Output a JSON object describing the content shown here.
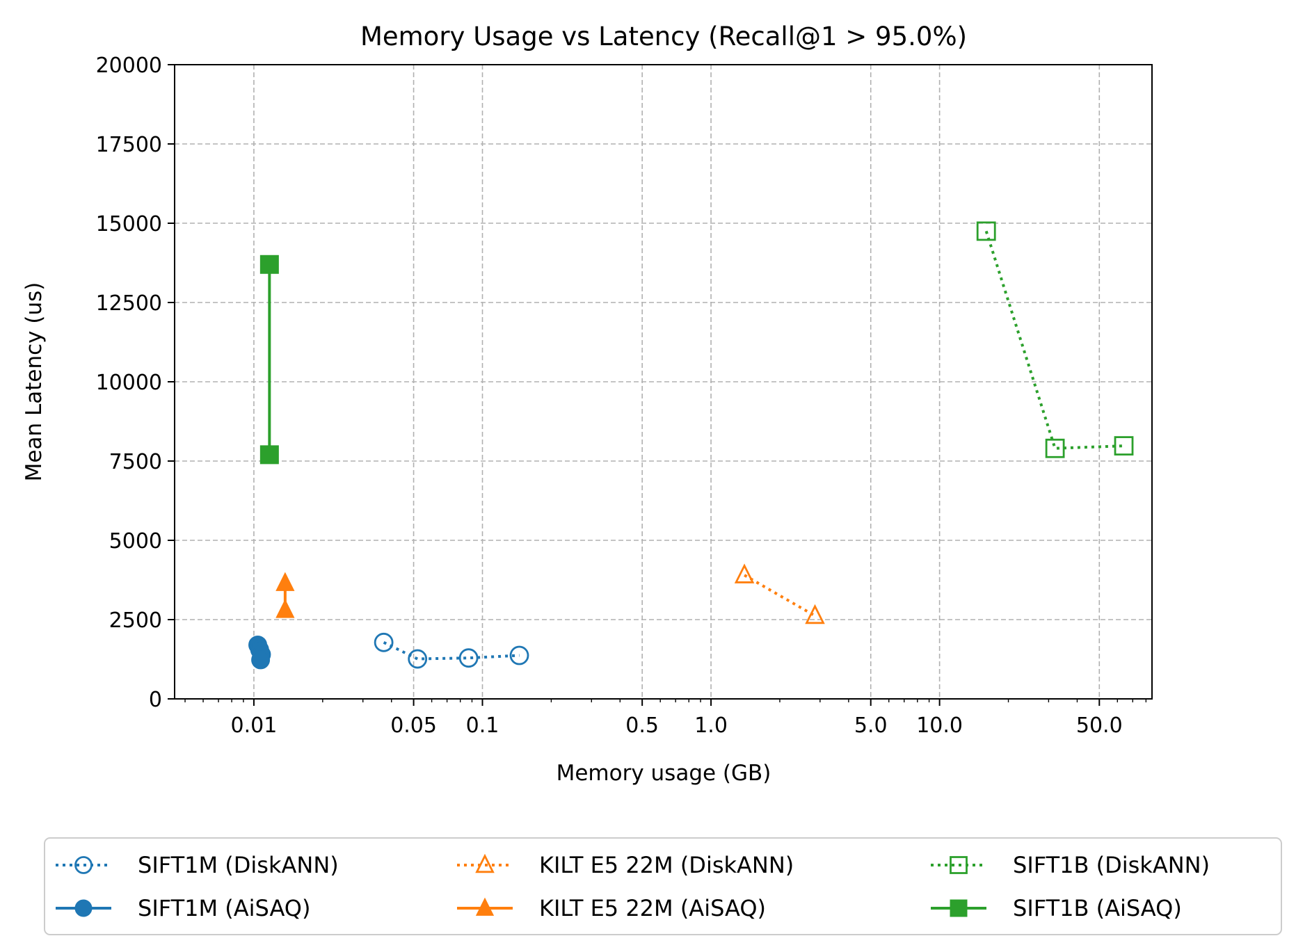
{
  "chart_data": {
    "type": "line",
    "title": "Memory Usage vs Latency (Recall@1 > 95.0%)",
    "xlabel": "Memory usage (GB)",
    "ylabel": "Mean Latency (us)",
    "xscale": "log",
    "xlim": [
      0.0045,
      85
    ],
    "ylim": [
      0,
      20000
    ],
    "x_ticks": [
      0.01,
      0.05,
      0.1,
      0.5,
      1.0,
      5.0,
      10.0,
      50.0
    ],
    "x_tick_labels": [
      "0.01",
      "0.05",
      "0.1",
      "0.5",
      "1.0",
      "5.0",
      "10.0",
      "50.0"
    ],
    "y_ticks": [
      0,
      2500,
      5000,
      7500,
      10000,
      12500,
      15000,
      17500,
      20000
    ],
    "y_tick_labels": [
      "0",
      "2500",
      "5000",
      "7500",
      "10000",
      "12500",
      "15000",
      "17500",
      "20000"
    ],
    "grid": true,
    "legend_position": "bottom",
    "series": [
      {
        "name": "SIFT1M (DiskANN)",
        "color": "#1f77b4",
        "marker": "circle-open",
        "line": "dotted",
        "x": [
          0.037,
          0.052,
          0.087,
          0.145
        ],
        "y": [
          1780,
          1260,
          1290,
          1370
        ]
      },
      {
        "name": "SIFT1M (AiSAQ)",
        "color": "#1f77b4",
        "marker": "circle-filled",
        "line": "solid",
        "x": [
          0.0104,
          0.0106,
          0.0108,
          0.0107
        ],
        "y": [
          1700,
          1550,
          1400,
          1230
        ]
      },
      {
        "name": "KILT E5 22M (DiskANN)",
        "color": "#ff7f0e",
        "marker": "triangle-open",
        "line": "dotted",
        "x": [
          1.4,
          2.85
        ],
        "y": [
          3900,
          2620
        ]
      },
      {
        "name": "KILT E5 22M (AiSAQ)",
        "color": "#ff7f0e",
        "marker": "triangle-filled",
        "line": "solid",
        "x": [
          0.0137,
          0.0137
        ],
        "y": [
          3650,
          2800
        ]
      },
      {
        "name": "SIFT1B (DiskANN)",
        "color": "#2ca02c",
        "marker": "square-open",
        "line": "dotted",
        "x": [
          16.0,
          32.0,
          64.0
        ],
        "y": [
          14750,
          7900,
          7980
        ]
      },
      {
        "name": "SIFT1B (AiSAQ)",
        "color": "#2ca02c",
        "marker": "square-filled",
        "line": "solid",
        "x": [
          0.0117,
          0.0117
        ],
        "y": [
          13700,
          7700
        ]
      }
    ]
  }
}
